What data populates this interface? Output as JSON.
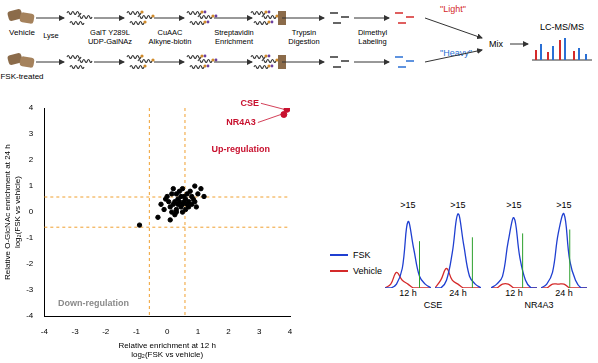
{
  "workflow": {
    "conditions": [
      {
        "label": "Vehicle",
        "tag": "\"Light\"",
        "tag_color": "#d42a2a"
      },
      {
        "label": "FSK-treated",
        "tag": "\"Heavy\"",
        "tag_color": "#2a6fd4"
      }
    ],
    "steps": [
      [
        "Lyse"
      ],
      [
        "GalT Y289L",
        "UDP-GalNAz"
      ],
      [
        "CuAAC",
        "Alkyne-biotin"
      ],
      [
        "Streptavidin",
        "Enrichment"
      ],
      [
        "Trypsin",
        "Digestion"
      ],
      [
        "Dimethyl",
        "Labeling"
      ]
    ],
    "merge": "Mix",
    "analysis": "LC-MS/MS"
  },
  "chart_data": [
    {
      "type": "scatter",
      "xlabel": [
        "Relative enrichment at 12 h",
        "log₂(FSK vs vehicle)"
      ],
      "ylabel": [
        "Relative O-GlcNAc enrichment at 24 h",
        "log₂(FSK vs vehicle)"
      ],
      "xlim": [
        -4,
        4
      ],
      "xticks": [
        -4,
        -3,
        -2,
        -1,
        0,
        1,
        2,
        3,
        4
      ],
      "ylim": [
        -4,
        4
      ],
      "yticks": [
        -4,
        -3,
        -2,
        -1,
        0,
        1,
        2,
        3,
        4
      ],
      "grid": false,
      "series": [
        {
          "color": "#000000",
          "x": [
            0.1,
            0.2,
            0.3,
            0.4,
            0.5,
            0.6,
            0.7,
            0.8,
            0.9,
            1.0,
            0.15,
            0.25,
            0.35,
            0.45,
            0.55,
            0.65,
            0.75,
            0.85,
            0.05,
            -0.1,
            -0.2,
            -0.3,
            0.0,
            0.3,
            0.5,
            0.7,
            0.2,
            0.4,
            0.6,
            0.8,
            1.1,
            0.9,
            0.1,
            0.3,
            0.5,
            -0.05,
            0.25,
            0.45,
            0.65,
            0.35,
            -0.9,
            1.2,
            0.95,
            0.55,
            0.15
          ],
          "values": [
            0.2,
            0.3,
            0.1,
            0.4,
            0.3,
            0.5,
            0.2,
            0.6,
            0.4,
            0.7,
            0.0,
            -0.1,
            0.5,
            0.2,
            0.6,
            0.3,
            0.8,
            0.5,
            0.4,
            0.1,
            0.3,
            -0.2,
            0.6,
            0.7,
            0.0,
            0.4,
            0.9,
            0.8,
            0.1,
            0.3,
            0.9,
            1.0,
            -0.3,
            0.0,
            0.9,
            0.5,
            0.4,
            0.6,
            0.7,
            0.3,
            -0.5,
            0.6,
            0.2,
            0.4,
            0.7
          ]
        },
        {
          "color": "#c8102e",
          "x": [
            3.9,
            3.8
          ],
          "values": [
            3.95,
            3.75
          ],
          "point_labels": [
            "CSE",
            "NR4A3"
          ]
        }
      ],
      "reference_lines": {
        "x": [
          -0.58,
          0.58
        ],
        "y": [
          -0.58,
          0.58
        ],
        "color": "#f0a030",
        "line_style": "dashed"
      },
      "annotations": [
        {
          "text": "Up-regulation",
          "x": 2.4,
          "y": 2.4,
          "color": "#c8102e"
        },
        {
          "text": "Down-regulation",
          "x": -2.4,
          "y": -3.5,
          "color": "#8a8a8a"
        }
      ]
    },
    {
      "type": "line",
      "tick_labels": false,
      "grid": false,
      "legend": "left",
      "x": [
        0,
        1,
        2,
        3,
        4,
        5,
        6,
        7,
        8
      ],
      "xlim": [
        0,
        8
      ],
      "ylim": [
        0,
        20
      ],
      "groups": [
        {
          "label": "CSE",
          "panels": [
            {
              "title": ">15",
              "time": "12 h",
              "series": [
                {
                  "name": "FSK",
                  "color": "#1f3fd1",
                  "values": [
                    0,
                    0,
                    1,
                    5,
                    17,
                    10,
                    3,
                    1,
                    0
                  ]
                },
                {
                  "name": "Vehicle",
                  "color": "#d42a2a",
                  "values": [
                    0,
                    1,
                    4,
                    2,
                    1,
                    0,
                    0,
                    0,
                    0
                  ]
                }
              ],
              "marker_line": {
                "x": 6,
                "value": 12,
                "color": "#2ca02c"
              }
            },
            {
              "title": ">15",
              "time": "24 h",
              "series": [
                {
                  "name": "FSK",
                  "color": "#1f3fd1",
                  "values": [
                    0,
                    0,
                    2,
                    9,
                    19,
                    11,
                    3,
                    1,
                    0
                  ]
                },
                {
                  "name": "Vehicle",
                  "color": "#d42a2a",
                  "values": [
                    0,
                    2,
                    5,
                    2,
                    1,
                    0,
                    0,
                    0,
                    0
                  ]
                }
              ],
              "marker_line": {
                "x": 6.5,
                "value": 13,
                "color": "#2ca02c"
              }
            }
          ]
        },
        {
          "label": "NR4A3",
          "panels": [
            {
              "title": ">15",
              "time": "12 h",
              "series": [
                {
                  "name": "FSK",
                  "color": "#1f3fd1",
                  "values": [
                    0,
                    1,
                    3,
                    12,
                    18,
                    8,
                    2,
                    0,
                    0
                  ]
                },
                {
                  "name": "Vehicle",
                  "color": "#d42a2a",
                  "values": [
                    0,
                    0,
                    1,
                    1,
                    0,
                    0,
                    0,
                    0,
                    0
                  ]
                }
              ],
              "marker_line": {
                "x": 5.5,
                "value": 14,
                "color": "#2ca02c"
              }
            },
            {
              "title": ">15",
              "time": "24 h",
              "series": [
                {
                  "name": "FSK",
                  "color": "#1f3fd1",
                  "values": [
                    0,
                    1,
                    4,
                    14,
                    19,
                    7,
                    2,
                    0,
                    0
                  ]
                },
                {
                  "name": "Vehicle",
                  "color": "#d42a2a",
                  "values": [
                    0,
                    0,
                    1,
                    1,
                    1,
                    0,
                    0,
                    0,
                    0
                  ]
                }
              ],
              "marker_line": {
                "x": 5,
                "value": 15,
                "color": "#2ca02c"
              }
            }
          ]
        }
      ]
    }
  ]
}
